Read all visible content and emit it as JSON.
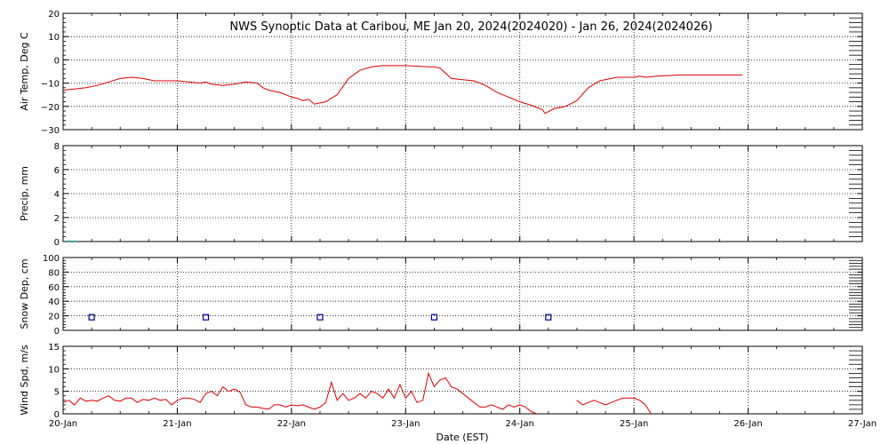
{
  "chart_data": {
    "type": "line",
    "title": "NWS Synoptic Data at Caribou, ME   Jan 20, 2024(2024020) - Jan 26, 2024(2024026)",
    "xlabel": "Date (EST)",
    "x_ticks": [
      "20-Jan",
      "21-Jan",
      "22-Jan",
      "23-Jan",
      "24-Jan",
      "25-Jan",
      "26-Jan",
      "27-Jan"
    ],
    "x_range_days": [
      0,
      7
    ],
    "colors": {
      "line": "#dd0000",
      "precip": "#00cccc",
      "snow_marker": "#000088",
      "grid": "#000000"
    },
    "panels": [
      {
        "name": "air-temp",
        "ylabel": "Air Temp, Deg C",
        "ylim": [
          -30,
          20
        ],
        "yticks": [
          20,
          10,
          0,
          -10,
          -20,
          -30
        ],
        "ytick_labels": [
          "20",
          "10",
          "0",
          "−10",
          "−20",
          "−30"
        ],
        "series": [
          {
            "style": "line",
            "x": [
              0,
              0.1,
              0.2,
              0.3,
              0.4,
              0.5,
              0.6,
              0.7,
              0.8,
              0.9,
              1.0,
              1.1,
              1.2,
              1.25,
              1.3,
              1.4,
              1.5,
              1.6,
              1.7,
              1.75,
              1.8,
              1.9,
              2.0,
              2.05,
              2.1,
              2.15,
              2.2,
              2.25,
              2.3,
              2.35,
              2.4,
              2.5,
              2.6,
              2.7,
              2.8,
              2.9,
              3.0,
              3.1,
              3.2,
              3.25,
              3.3,
              3.4,
              3.5,
              3.6,
              3.7,
              3.8,
              3.9,
              4.0,
              4.1,
              4.2,
              4.22,
              4.3,
              4.4,
              4.5,
              4.6,
              4.7,
              4.8,
              4.85,
              4.9,
              5.0,
              5.05,
              5.1,
              5.2,
              5.4,
              5.6,
              5.8,
              5.95
            ],
            "values": [
              -13,
              -12.5,
              -12,
              -11,
              -9.5,
              -8,
              -7.5,
              -8,
              -9,
              -9,
              -9,
              -9.5,
              -10,
              -9.5,
              -10.5,
              -11,
              -10.5,
              -9.5,
              -10,
              -12,
              -13,
              -14,
              -16,
              -16.5,
              -17.5,
              -17,
              -19,
              -18.5,
              -18,
              -16.5,
              -15,
              -8,
              -4.5,
              -3,
              -2.5,
              -2.5,
              -2.5,
              -2.7,
              -3,
              -3,
              -3.5,
              -8,
              -8.5,
              -9,
              -11,
              -14,
              -16,
              -18,
              -19.5,
              -21.5,
              -23,
              -21,
              -20,
              -17.5,
              -12,
              -9,
              -8,
              -7.5,
              -7.5,
              -7.5,
              -7,
              -7.5,
              -7,
              -6.5,
              -6.5,
              -6.5,
              -6.5
            ]
          }
        ]
      },
      {
        "name": "precip",
        "ylabel": "Precip, mm",
        "ylim": [
          0,
          8
        ],
        "yticks": [
          8,
          6,
          4,
          2,
          0
        ],
        "ytick_labels": [
          "8",
          "6",
          "4",
          "2",
          "0"
        ],
        "series": [
          {
            "style": "bars",
            "x": [
              0.05,
              0.1
            ],
            "values": [
              0.1,
              0.1
            ]
          }
        ]
      },
      {
        "name": "snow-depth",
        "ylabel": "Snow Dep, cm",
        "ylim": [
          0,
          100
        ],
        "yticks": [
          100,
          80,
          60,
          40,
          20,
          0
        ],
        "ytick_labels": [
          "100",
          "80",
          "60",
          "40",
          "20",
          "0"
        ],
        "series": [
          {
            "style": "markers",
            "x": [
              0.25,
              1.25,
              2.25,
              3.25,
              4.25
            ],
            "values": [
              18,
              18,
              18,
              18,
              18
            ]
          }
        ]
      },
      {
        "name": "wind-speed",
        "ylabel": "Wind Spd, m/s",
        "ylim": [
          0,
          15
        ],
        "yticks": [
          15,
          10,
          5,
          0
        ],
        "ytick_labels": [
          "15",
          "10",
          "5",
          "0"
        ],
        "series": [
          {
            "style": "line",
            "x": [
              0,
              0.05,
              0.1,
              0.15,
              0.2,
              0.25,
              0.3,
              0.35,
              0.4,
              0.45,
              0.5,
              0.55,
              0.6,
              0.65,
              0.7,
              0.75,
              0.8,
              0.85,
              0.9,
              0.95,
              1.0,
              1.05,
              1.1,
              1.15,
              1.2,
              1.25,
              1.3,
              1.35,
              1.4,
              1.45,
              1.5,
              1.55,
              1.6,
              1.65,
              1.7,
              1.75,
              1.8,
              1.85,
              1.9,
              1.95,
              2.0,
              2.05,
              2.1,
              2.15,
              2.2,
              2.25,
              2.3,
              2.35,
              2.4,
              2.45,
              2.5,
              2.55,
              2.6,
              2.65,
              2.7,
              2.75,
              2.8,
              2.85,
              2.9,
              2.95,
              3.0,
              3.05,
              3.1,
              3.15,
              3.2,
              3.25,
              3.3,
              3.35,
              3.4,
              3.45,
              3.5,
              3.55,
              3.6,
              3.65,
              3.7,
              3.75,
              3.8,
              3.85,
              3.9,
              3.95,
              4.0,
              4.05,
              4.1,
              4.15
            ],
            "values": [
              2.5,
              3,
              2,
              3.5,
              2.8,
              3,
              2.8,
              3.5,
              4,
              3,
              2.8,
              3.5,
              3.5,
              2.5,
              3.2,
              3,
              3.5,
              3,
              3.2,
              2,
              3,
              3.5,
              3.5,
              3.2,
              2.5,
              4.5,
              5,
              4,
              6,
              5,
              5.5,
              4.8,
              2,
              1.5,
              1.5,
              1.2,
              1,
              2,
              2,
              1.5,
              2,
              1.8,
              2,
              1.5,
              1,
              1.5,
              2.5,
              7,
              3,
              4.5,
              3,
              3.5,
              4.5,
              3.5,
              5,
              4.5,
              3.5,
              5.5,
              3.5,
              6.5,
              3.5,
              5,
              2.5,
              3,
              9,
              6,
              7.5,
              8,
              6,
              5.5,
              4.5,
              3.5,
              2.5,
              1.5,
              1.5,
              2,
              1.5,
              1,
              2,
              1.5,
              2,
              1.5,
              0.5,
              0
            ],
            "x2": [
              4.5,
              4.55,
              4.6,
              4.65,
              4.7,
              4.75,
              4.8,
              4.85,
              4.9,
              4.95,
              5.0,
              5.05,
              5.1,
              5.15
            ],
            "values2": [
              3,
              2,
              2.5,
              3,
              2.5,
              2,
              2.5,
              3,
              3.5,
              3.5,
              3.5,
              3,
              2,
              0
            ]
          }
        ]
      }
    ]
  }
}
